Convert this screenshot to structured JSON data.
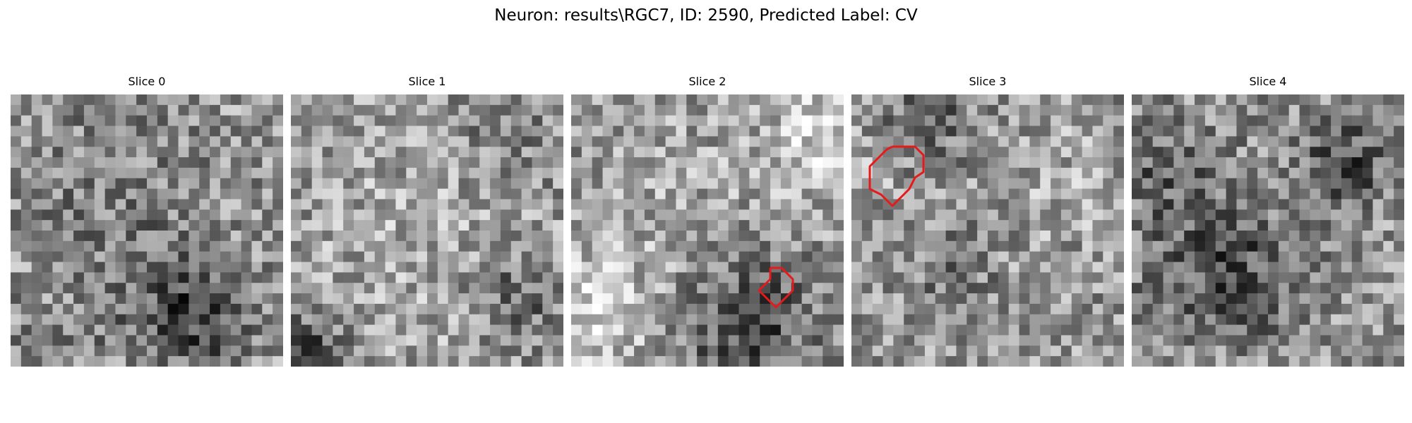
{
  "figure": {
    "title": "Neuron: results\\RGC7, ID: 2590, Predicted Label: CV"
  },
  "colors": {
    "background": "#ffffff",
    "roi_outline": "#e41a1c"
  },
  "image_style": {
    "colormap": "gray",
    "grid_cells": 26
  },
  "slices": [
    {
      "title": "Slice 0",
      "roi": false
    },
    {
      "title": "Slice 1",
      "roi": false
    },
    {
      "title": "Slice 2",
      "roi": true
    },
    {
      "title": "Slice 3",
      "roi": true
    },
    {
      "title": "Slice 4",
      "roi": false
    }
  ]
}
